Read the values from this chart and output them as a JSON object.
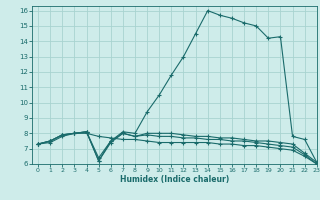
{
  "title": "",
  "xlabel": "Humidex (Indice chaleur)",
  "xlim": [
    -0.5,
    23
  ],
  "ylim": [
    6,
    16.3
  ],
  "xticks": [
    0,
    1,
    2,
    3,
    4,
    5,
    6,
    7,
    8,
    9,
    10,
    11,
    12,
    13,
    14,
    15,
    16,
    17,
    18,
    19,
    20,
    21,
    22,
    23
  ],
  "yticks": [
    6,
    7,
    8,
    9,
    10,
    11,
    12,
    13,
    14,
    15,
    16
  ],
  "bg_color": "#ceecea",
  "grid_color": "#a8d4d0",
  "line_color": "#1a6b6b",
  "lines": [
    {
      "x": [
        0,
        1,
        2,
        3,
        4,
        5,
        6,
        7,
        8,
        9,
        10,
        11,
        12,
        13,
        14,
        15,
        16,
        17,
        18,
        19,
        20,
        21,
        22,
        23
      ],
      "y": [
        7.3,
        7.5,
        7.9,
        8.0,
        8.1,
        6.2,
        7.5,
        8.1,
        8.0,
        9.4,
        10.5,
        11.8,
        13.0,
        14.5,
        16.0,
        15.7,
        15.5,
        15.2,
        15.0,
        14.2,
        14.3,
        7.8,
        7.6,
        6.1
      ]
    },
    {
      "x": [
        0,
        1,
        2,
        3,
        4,
        5,
        6,
        7,
        8,
        9,
        10,
        11,
        12,
        13,
        14,
        15,
        16,
        17,
        18,
        19,
        20,
        21,
        22,
        23
      ],
      "y": [
        7.3,
        7.5,
        7.9,
        8.0,
        8.1,
        6.2,
        7.4,
        8.0,
        7.8,
        8.0,
        8.0,
        8.0,
        7.9,
        7.8,
        7.8,
        7.7,
        7.7,
        7.6,
        7.5,
        7.5,
        7.4,
        7.3,
        6.7,
        6.1
      ]
    },
    {
      "x": [
        0,
        1,
        2,
        3,
        4,
        5,
        6,
        7,
        8,
        9,
        10,
        11,
        12,
        13,
        14,
        15,
        16,
        17,
        18,
        19,
        20,
        21,
        22,
        23
      ],
      "y": [
        7.3,
        7.5,
        7.9,
        8.0,
        8.1,
        6.4,
        7.5,
        8.0,
        7.8,
        7.9,
        7.8,
        7.8,
        7.7,
        7.7,
        7.6,
        7.6,
        7.5,
        7.5,
        7.4,
        7.3,
        7.2,
        7.1,
        6.6,
        6.0
      ]
    },
    {
      "x": [
        0,
        1,
        2,
        3,
        4,
        5,
        6,
        7,
        8,
        9,
        10,
        11,
        12,
        13,
        14,
        15,
        16,
        17,
        18,
        19,
        20,
        21,
        22,
        23
      ],
      "y": [
        7.3,
        7.4,
        7.8,
        8.0,
        8.0,
        7.8,
        7.7,
        7.6,
        7.6,
        7.5,
        7.4,
        7.4,
        7.4,
        7.4,
        7.4,
        7.3,
        7.3,
        7.2,
        7.2,
        7.1,
        7.0,
        6.9,
        6.5,
        6.0
      ]
    }
  ]
}
